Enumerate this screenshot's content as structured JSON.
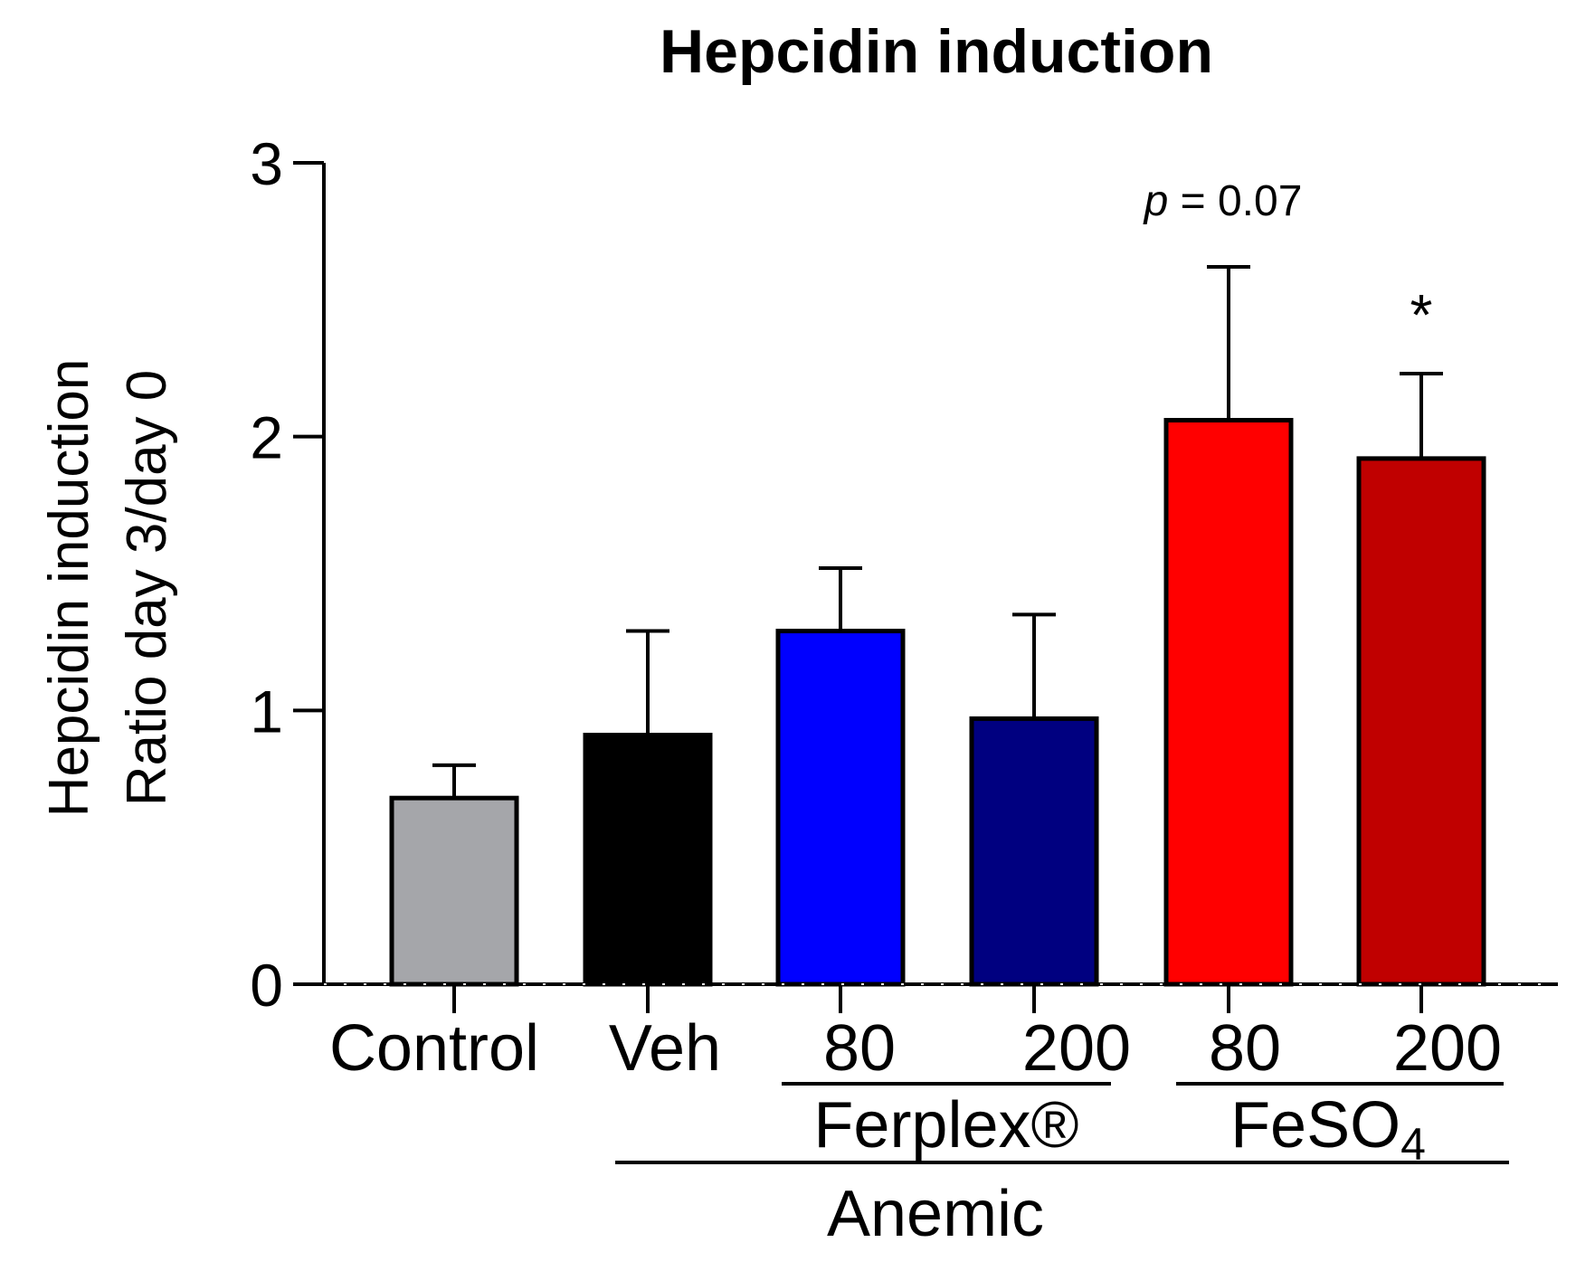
{
  "chart_data": {
    "type": "bar",
    "title": "Hepcidin induction",
    "ylabel_lines": [
      "Hepcidin induction",
      "Ratio day 3/day 0"
    ],
    "xlabel": "",
    "ylim": [
      0,
      3
    ],
    "yticks": [
      "0",
      "1",
      "2",
      "3"
    ],
    "categories": [
      "Control",
      "Veh",
      "80",
      "200",
      "80",
      "200"
    ],
    "values": [
      0.68,
      0.91,
      1.29,
      0.97,
      2.06,
      1.92
    ],
    "errors": [
      0.12,
      0.38,
      0.23,
      0.38,
      0.56,
      0.31
    ],
    "colors": [
      "#a5a6aa",
      "#000000",
      "#0000ff",
      "#000080",
      "#ff0000",
      "#c00000"
    ],
    "groups": [
      {
        "label": "Ferplex®",
        "from": 2,
        "to": 3
      },
      {
        "label": "FeSO",
        "subscript": "4",
        "from": 4,
        "to": 5
      },
      {
        "label": "Anemic",
        "from": 1,
        "to": 5
      }
    ],
    "annotations": [
      {
        "italic": "p",
        "text": " = 0.07",
        "bar": 4
      },
      {
        "text": "*",
        "bar": 5
      }
    ]
  }
}
